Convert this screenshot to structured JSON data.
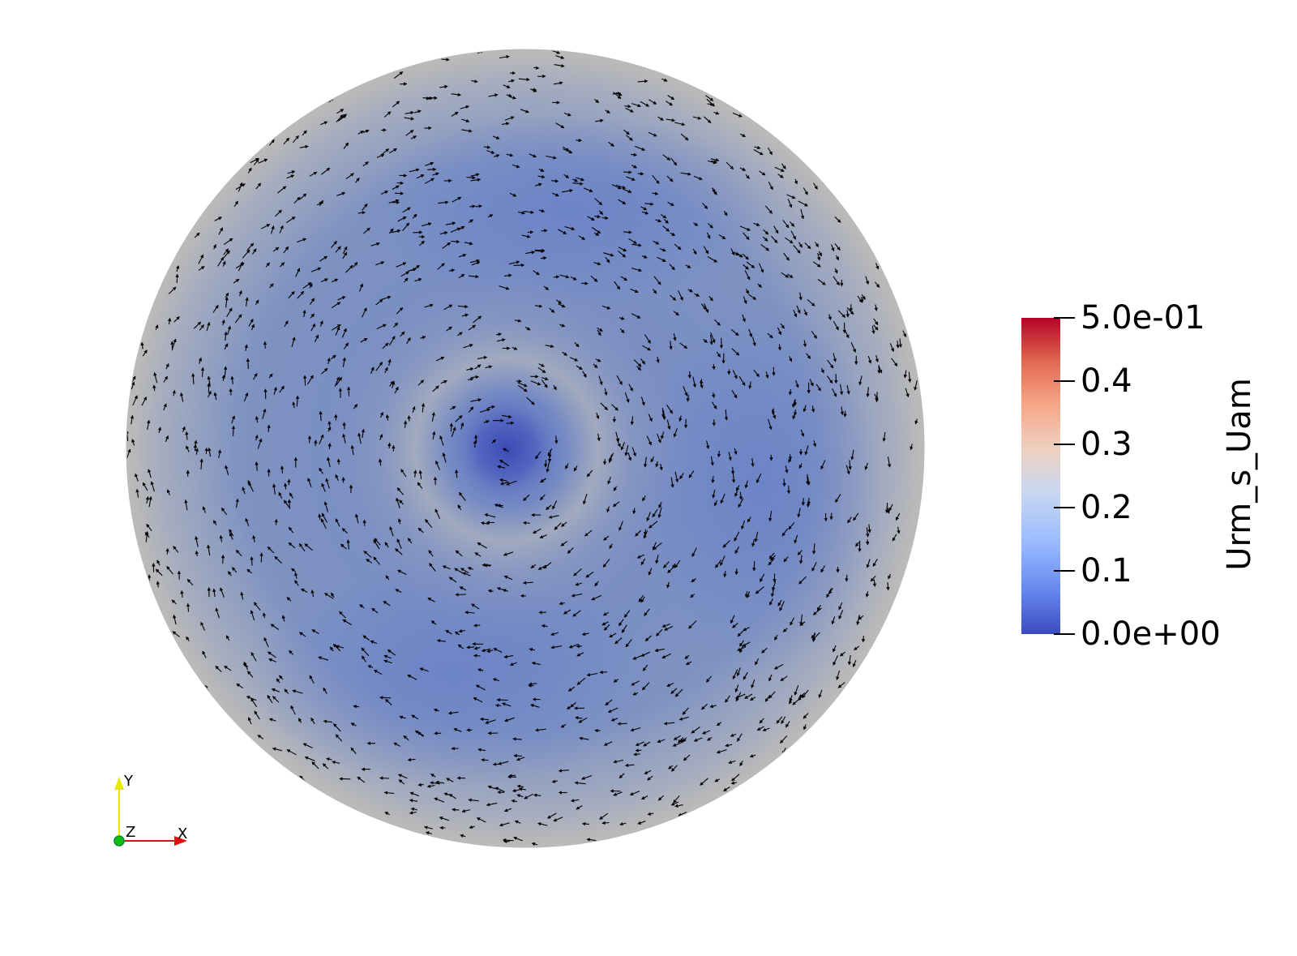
{
  "legend": {
    "title": "Urm_s_Uam",
    "range": [
      0,
      0.5
    ],
    "ticks": [
      {
        "value": 0.5,
        "label": "5.0e-01"
      },
      {
        "value": 0.4,
        "label": "0.4"
      },
      {
        "value": 0.3,
        "label": "0.3"
      },
      {
        "value": 0.2,
        "label": "0.2"
      },
      {
        "value": 0.1,
        "label": "0.1"
      },
      {
        "value": 0.0,
        "label": "0.0e+00"
      }
    ],
    "colormap": [
      "#3b4cc0",
      "#6788ee",
      "#9abbff",
      "#c9d7f0",
      "#edd1c2",
      "#f7a889",
      "#e26952",
      "#b40426"
    ]
  },
  "axes": {
    "x_label": "X",
    "y_label": "Y",
    "z_label": "Z",
    "x_color": "#e01010",
    "y_color": "#e8e800",
    "z_color": "#10c010"
  },
  "field_colors": {
    "low": "#4a5ec2",
    "mid": "#7187c4",
    "high": "#bfbdb8",
    "arrow": "#000000"
  }
}
